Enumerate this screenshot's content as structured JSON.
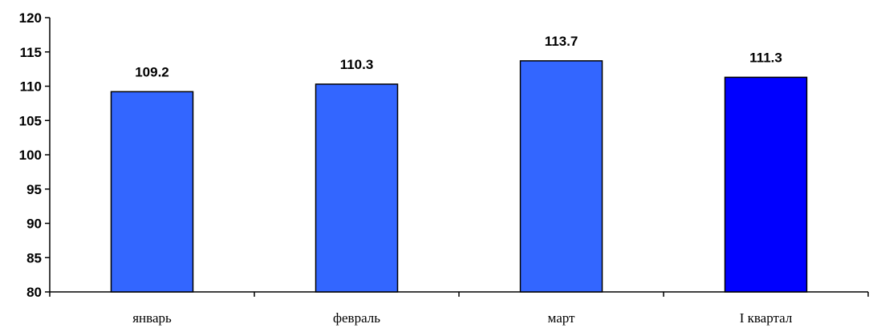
{
  "chart_data": {
    "type": "bar",
    "title": "",
    "xlabel": "",
    "ylabel": "",
    "categories": [
      "январь",
      "февраль",
      "март",
      "I квартал"
    ],
    "values": [
      109.2,
      110.3,
      113.7,
      111.3
    ],
    "data_labels": [
      "109.2",
      "110.3",
      "113.7",
      "111.3"
    ],
    "ylim": [
      80,
      120
    ],
    "y_ticks": [
      "80",
      "85",
      "90",
      "95",
      "100",
      "105",
      "110",
      "115",
      "120"
    ],
    "grid": false,
    "legend": "none",
    "bar_colors": [
      "#3366ff",
      "#3366ff",
      "#3366ff",
      "#0000ff"
    ],
    "bar_outline": "#000000"
  }
}
